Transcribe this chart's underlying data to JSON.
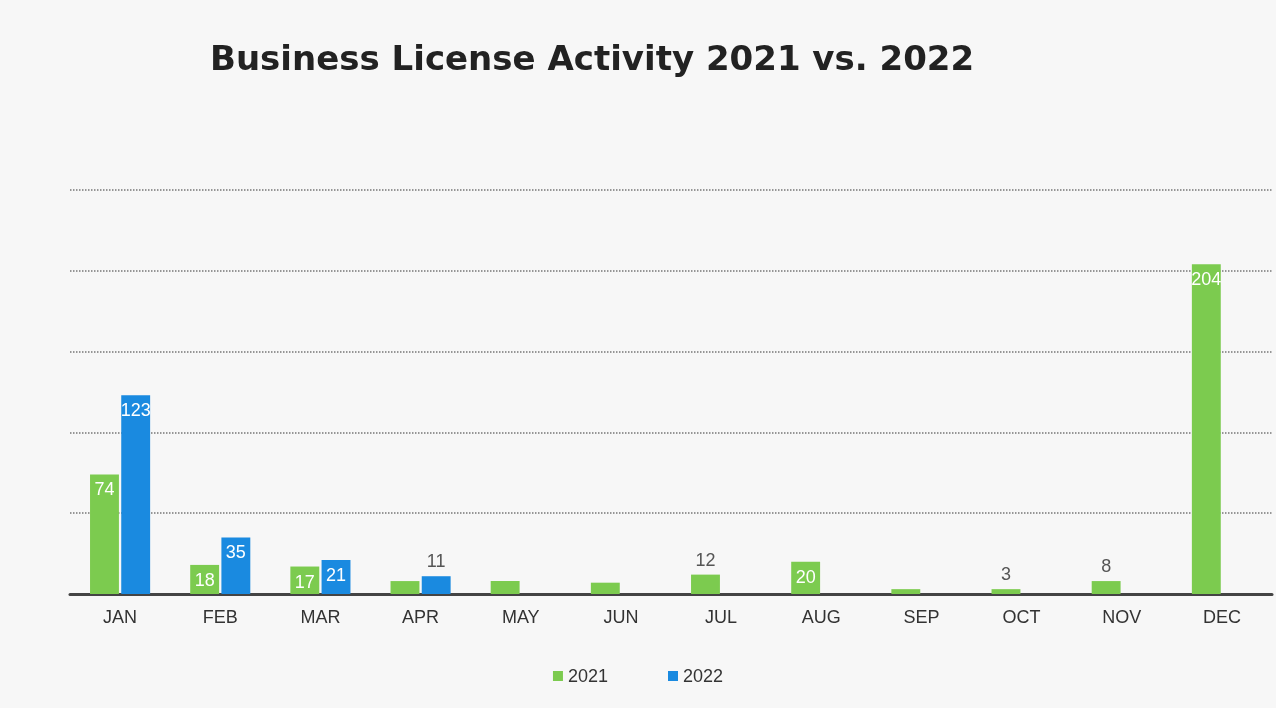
{
  "chart_data": {
    "type": "bar",
    "title": "Business License Activity 2021 vs. 2022",
    "categories": [
      "JAN",
      "FEB",
      "MAR",
      "APR",
      "MAY",
      "JUN",
      "JUL",
      "AUG",
      "SEP",
      "OCT",
      "NOV",
      "DEC"
    ],
    "series": [
      {
        "name": "2021",
        "color": "#7ccb4f",
        "values": [
          74,
          18,
          17,
          8,
          8,
          7,
          12,
          20,
          3,
          3,
          8,
          204
        ],
        "value_labels": [
          "74",
          "18",
          "17",
          null,
          null,
          null,
          "12",
          "20",
          null,
          "3",
          "8",
          "204"
        ]
      },
      {
        "name": "2022",
        "color": "#1a8ae0",
        "values": [
          123,
          35,
          21,
          11,
          null,
          null,
          null,
          null,
          null,
          null,
          null,
          null
        ],
        "value_labels": [
          "123",
          "35",
          "21",
          "11",
          null,
          null,
          null,
          null,
          null,
          null,
          null,
          null
        ]
      }
    ],
    "grid": "y",
    "legend": "bottom"
  }
}
